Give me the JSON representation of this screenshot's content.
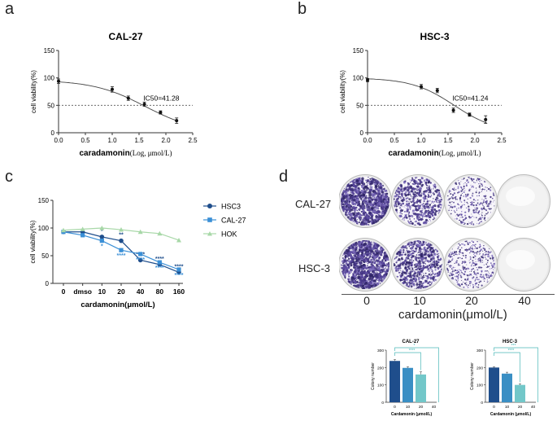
{
  "panels": {
    "a": "a",
    "b": "b",
    "c": "c",
    "d": "d"
  },
  "chart_data": [
    {
      "id": "a",
      "type": "scatter",
      "title": "CAL-27",
      "xlabel": "caradamonin",
      "xlabel_unit": "(Log, μmol/L)",
      "ylabel": "cell viability(%)",
      "xlim": [
        0,
        2.5
      ],
      "ylim": [
        0,
        150
      ],
      "xticks": [
        "0.0",
        "0.5",
        "1.0",
        "1.5",
        "2.0",
        "2.5"
      ],
      "yticks": [
        "0",
        "50",
        "100",
        "150"
      ],
      "points": [
        {
          "x": 0.0,
          "y": 94,
          "err": 4
        },
        {
          "x": 1.0,
          "y": 79,
          "err": 5
        },
        {
          "x": 1.3,
          "y": 63,
          "err": 4
        },
        {
          "x": 1.6,
          "y": 52,
          "err": 4
        },
        {
          "x": 1.9,
          "y": 37,
          "err": 3
        },
        {
          "x": 2.2,
          "y": 22,
          "err": 5
        }
      ],
      "fit": {
        "top": 96,
        "bottom": 0,
        "logIC50": 1.616,
        "hill": 0.9
      },
      "ic50_label": "IC50=41.28",
      "reference_y": 50
    },
    {
      "id": "b",
      "type": "scatter",
      "title": "HSC-3",
      "xlabel": "caradamonin",
      "xlabel_unit": "(Log, μmol/L)",
      "ylabel": "cell viability(%)",
      "xlim": [
        0,
        2.5
      ],
      "ylim": [
        0,
        150
      ],
      "xticks": [
        "0.0",
        "0.5",
        "1.0",
        "1.5",
        "2.0",
        "2.5"
      ],
      "yticks": [
        "0",
        "50",
        "100",
        "150"
      ],
      "points": [
        {
          "x": 0.0,
          "y": 96,
          "err": 3
        },
        {
          "x": 1.0,
          "y": 84,
          "err": 4
        },
        {
          "x": 1.3,
          "y": 77,
          "err": 4
        },
        {
          "x": 1.6,
          "y": 41,
          "err": 4
        },
        {
          "x": 1.9,
          "y": 33,
          "err": 3
        },
        {
          "x": 2.2,
          "y": 24,
          "err": 7
        }
      ],
      "fit": {
        "top": 100,
        "bottom": 0,
        "logIC50": 1.615,
        "hill": 1.1
      },
      "ic50_label": "IC50=41.24",
      "reference_y": 50
    },
    {
      "id": "c",
      "type": "line",
      "xlabel": "cardamonin(μmol/L)",
      "ylabel": "cell viability(%)",
      "categories": [
        "0",
        "dmso",
        "10",
        "20",
        "40",
        "80",
        "160"
      ],
      "ylim": [
        0,
        150
      ],
      "yticks": [
        "0",
        "50",
        "100",
        "150"
      ],
      "series": [
        {
          "name": "HSC3",
          "color": "#1f4e8c",
          "marker": "circle",
          "values": [
            93,
            93,
            84,
            77,
            42,
            34,
            20
          ],
          "sig": [
            "",
            "",
            "*",
            "**",
            "****",
            "****",
            "****"
          ]
        },
        {
          "name": "CAL-27",
          "color": "#3a8fd6",
          "marker": "square",
          "values": [
            93,
            87,
            77,
            60,
            53,
            38,
            25
          ],
          "sig": [
            "",
            "",
            "*",
            "****",
            "****",
            "****",
            "****"
          ]
        },
        {
          "name": "HOK",
          "color": "#a8d8a8",
          "marker": "triangle",
          "values": [
            96,
            98,
            100,
            97,
            93,
            90,
            78
          ],
          "sig": [
            "",
            "",
            "",
            "",
            "",
            "",
            ""
          ]
        }
      ]
    },
    {
      "id": "d1",
      "type": "bar",
      "title": "CAL-27",
      "xlabel": "Cardamonin (μmol/L)",
      "ylabel": "Colony number",
      "categories": [
        "0",
        "10",
        "20",
        "40"
      ],
      "values": [
        238,
        198,
        160,
        0
      ],
      "errors": [
        8,
        6,
        15,
        0
      ],
      "colors": [
        "#1f4e8c",
        "#3a8fc4",
        "#72c7c9",
        "#b8e4e4"
      ],
      "ylim": [
        0,
        300
      ],
      "yticks": [
        "0",
        "100",
        "200",
        "300"
      ],
      "sig": [
        "*",
        "****"
      ]
    },
    {
      "id": "d2",
      "type": "bar",
      "title": "HSC-3",
      "xlabel": "Cardamonin (μmol/L)",
      "ylabel": "Colony number",
      "categories": [
        "0",
        "10",
        "20",
        "40"
      ],
      "values": [
        200,
        165,
        100,
        0
      ],
      "errors": [
        4,
        8,
        6,
        0
      ],
      "colors": [
        "#1f4e8c",
        "#3a8fc4",
        "#72c7c9",
        "#b8e4e4"
      ],
      "ylim": [
        0,
        300
      ],
      "yticks": [
        "0",
        "100",
        "200",
        "300"
      ],
      "sig": [
        "***",
        "****"
      ]
    }
  ],
  "colony": {
    "rows": [
      "CAL-27",
      "HSC-3"
    ],
    "concentrations": [
      "0",
      "10",
      "20",
      "40"
    ],
    "axis_label": "cardamonin(μmol/L)"
  }
}
